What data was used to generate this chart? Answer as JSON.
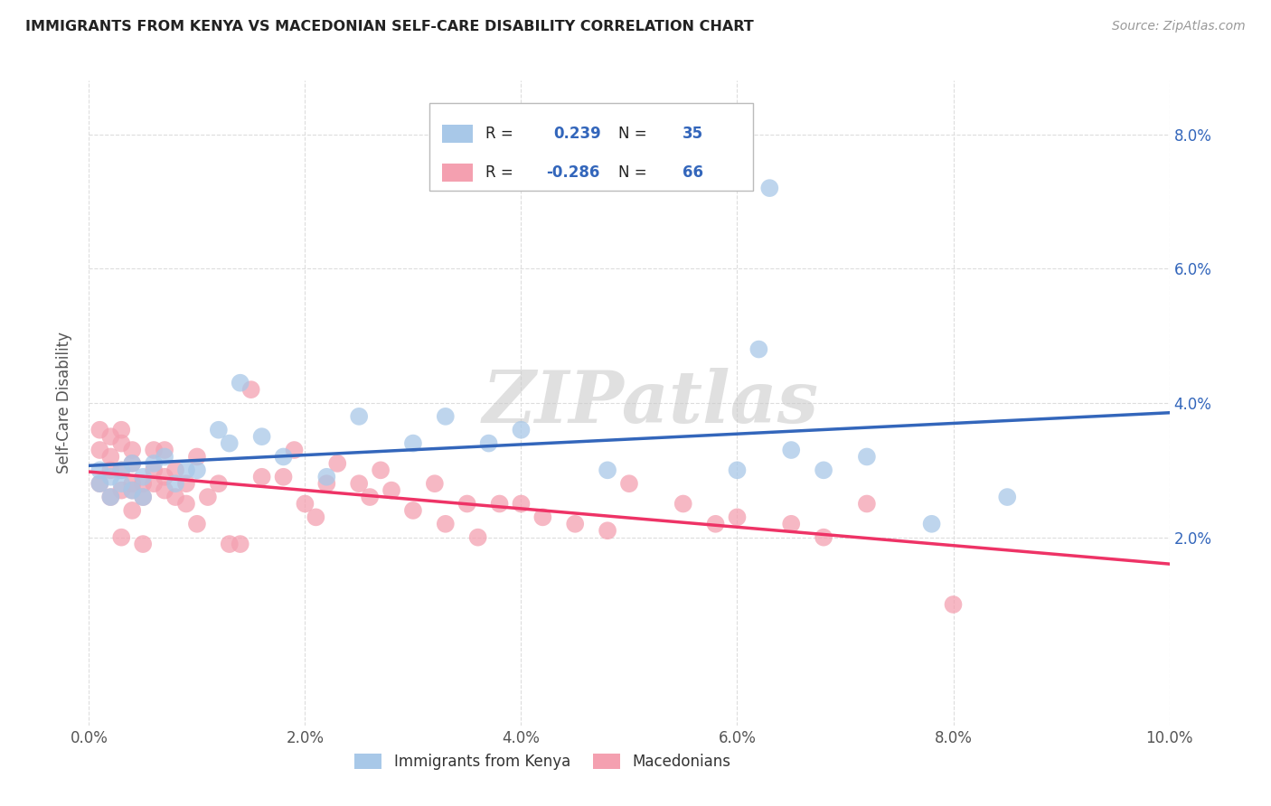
{
  "title": "IMMIGRANTS FROM KENYA VS MACEDONIAN SELF-CARE DISABILITY CORRELATION CHART",
  "source": "Source: ZipAtlas.com",
  "ylabel": "Self-Care Disability",
  "xlim": [
    0.0,
    0.1
  ],
  "ylim": [
    -0.008,
    0.088
  ],
  "y_ticks": [
    0.02,
    0.04,
    0.06,
    0.08
  ],
  "x_ticks": [
    0.0,
    0.02,
    0.04,
    0.06,
    0.08,
    0.1
  ],
  "watermark": "ZIPatlas",
  "legend_labels": [
    "Immigrants from Kenya",
    "Macedonians"
  ],
  "R_kenya": 0.239,
  "N_kenya": 35,
  "R_mace": -0.286,
  "N_mace": 66,
  "blue_color": "#A8C8E8",
  "pink_color": "#F4A0B0",
  "blue_line_color": "#3366BB",
  "pink_line_color": "#EE3366",
  "kenya_x": [
    0.001,
    0.001,
    0.002,
    0.002,
    0.003,
    0.003,
    0.004,
    0.004,
    0.005,
    0.005,
    0.006,
    0.007,
    0.008,
    0.009,
    0.01,
    0.012,
    0.013,
    0.014,
    0.016,
    0.018,
    0.022,
    0.025,
    0.03,
    0.033,
    0.037,
    0.04,
    0.048,
    0.06,
    0.062,
    0.065,
    0.068,
    0.072,
    0.078,
    0.085,
    0.063
  ],
  "kenya_y": [
    0.028,
    0.03,
    0.026,
    0.029,
    0.028,
    0.03,
    0.031,
    0.027,
    0.029,
    0.026,
    0.031,
    0.032,
    0.028,
    0.03,
    0.03,
    0.036,
    0.034,
    0.043,
    0.035,
    0.032,
    0.029,
    0.038,
    0.034,
    0.038,
    0.034,
    0.036,
    0.03,
    0.03,
    0.048,
    0.033,
    0.03,
    0.032,
    0.022,
    0.026,
    0.072
  ],
  "mace_x": [
    0.001,
    0.001,
    0.001,
    0.002,
    0.002,
    0.002,
    0.002,
    0.003,
    0.003,
    0.003,
    0.003,
    0.003,
    0.004,
    0.004,
    0.004,
    0.004,
    0.004,
    0.005,
    0.005,
    0.005,
    0.006,
    0.006,
    0.006,
    0.007,
    0.007,
    0.007,
    0.008,
    0.008,
    0.009,
    0.009,
    0.01,
    0.01,
    0.011,
    0.012,
    0.013,
    0.014,
    0.015,
    0.016,
    0.018,
    0.019,
    0.02,
    0.021,
    0.022,
    0.023,
    0.025,
    0.026,
    0.027,
    0.028,
    0.03,
    0.032,
    0.033,
    0.035,
    0.036,
    0.038,
    0.04,
    0.042,
    0.045,
    0.048,
    0.05,
    0.055,
    0.058,
    0.06,
    0.065,
    0.068,
    0.072,
    0.08
  ],
  "mace_y": [
    0.028,
    0.033,
    0.036,
    0.026,
    0.03,
    0.035,
    0.032,
    0.027,
    0.03,
    0.034,
    0.036,
    0.02,
    0.027,
    0.031,
    0.033,
    0.028,
    0.024,
    0.028,
    0.026,
    0.019,
    0.028,
    0.03,
    0.033,
    0.029,
    0.033,
    0.027,
    0.03,
    0.026,
    0.028,
    0.025,
    0.022,
    0.032,
    0.026,
    0.028,
    0.019,
    0.019,
    0.042,
    0.029,
    0.029,
    0.033,
    0.025,
    0.023,
    0.028,
    0.031,
    0.028,
    0.026,
    0.03,
    0.027,
    0.024,
    0.028,
    0.022,
    0.025,
    0.02,
    0.025,
    0.025,
    0.023,
    0.022,
    0.021,
    0.028,
    0.025,
    0.022,
    0.023,
    0.022,
    0.02,
    0.025,
    0.01
  ]
}
